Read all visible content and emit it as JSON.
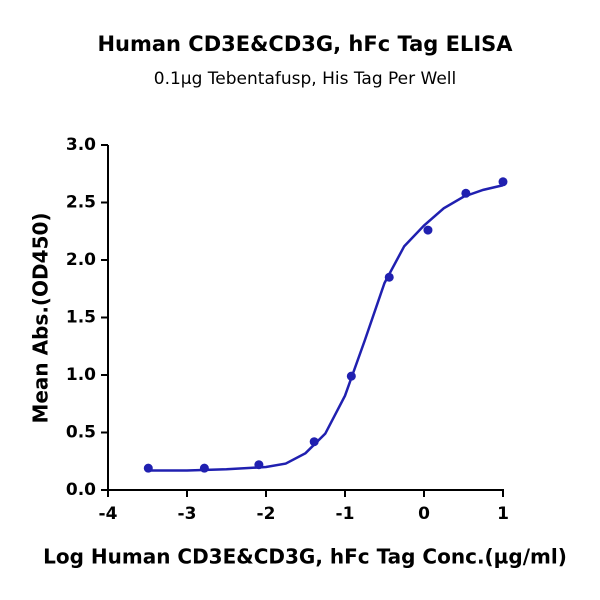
{
  "chart_data": {
    "type": "scatter",
    "title": "Human CD3E&CD3G, hFc Tag ELISA",
    "subtitle": "0.1µg Tebentafusp, His Tag Per Well",
    "x_label": "Log Human CD3E&CD3G, hFc Tag Conc.(µg/ml)",
    "y_label": "Mean Abs.(OD450)",
    "color": "#2020b0",
    "x": [
      -3.49,
      -2.78,
      -2.09,
      -1.39,
      -0.92,
      -0.44,
      0.05,
      0.53,
      1.0
    ],
    "values": [
      0.19,
      0.19,
      0.22,
      0.42,
      0.99,
      1.85,
      2.26,
      2.58,
      2.68
    ],
    "fit": {
      "x": [
        -3.5,
        -3.0,
        -2.5,
        -2.0,
        -1.75,
        -1.5,
        -1.25,
        -1.0,
        -0.75,
        -0.5,
        -0.25,
        0,
        0.25,
        0.5,
        0.75,
        1.0
      ],
      "values": [
        0.17,
        0.17,
        0.18,
        0.2,
        0.23,
        0.32,
        0.49,
        0.82,
        1.3,
        1.8,
        2.12,
        2.3,
        2.45,
        2.55,
        2.61,
        2.65
      ]
    },
    "xlim": [
      -4,
      1
    ],
    "xticks": [
      -4,
      -3,
      -2,
      -1,
      0,
      1
    ],
    "ylim": [
      0,
      3
    ],
    "yticks": [
      {
        "value": 0,
        "label": "0.0"
      },
      0.5,
      {
        "value": 1,
        "label": "1.0"
      },
      1.5,
      {
        "value": 2,
        "label": "2.0"
      },
      2.5,
      {
        "value": 3,
        "label": "3.0"
      }
    ]
  }
}
